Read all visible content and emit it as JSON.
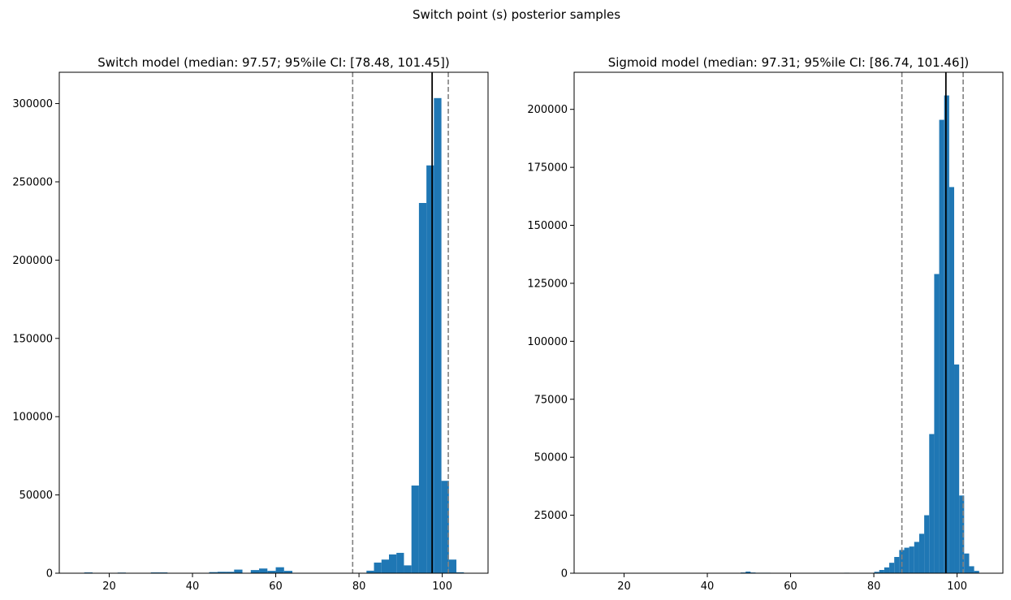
{
  "suptitle": "Switch point (s) posterior samples",
  "colors": {
    "bar": "#1f77b4",
    "median_line": "#000000",
    "ci_line": "#808080"
  },
  "chart_data": [
    {
      "type": "bar",
      "title": "Switch model (median: 97.57; 95%ile CI: [78.48, 101.45])",
      "xlabel": "",
      "ylabel": "",
      "xlim": [
        8,
        111
      ],
      "ylim": [
        0,
        320000
      ],
      "xticks": [
        20,
        40,
        60,
        80,
        100
      ],
      "yticks": [
        0,
        50000,
        100000,
        150000,
        200000,
        250000,
        300000
      ],
      "grid": false,
      "median": 97.57,
      "ci": [
        78.48,
        101.45
      ],
      "bins": [
        {
          "x0": 14.0,
          "x1": 16.0,
          "value": 500
        },
        {
          "x0": 22.0,
          "x1": 24.0,
          "value": 400
        },
        {
          "x0": 30.0,
          "x1": 32.0,
          "value": 500
        },
        {
          "x0": 32.0,
          "x1": 34.0,
          "value": 500
        },
        {
          "x0": 44.0,
          "x1": 46.0,
          "value": 700
        },
        {
          "x0": 46.0,
          "x1": 48.0,
          "value": 900
        },
        {
          "x0": 48.0,
          "x1": 50.0,
          "value": 900
        },
        {
          "x0": 50.0,
          "x1": 52.0,
          "value": 2300
        },
        {
          "x0": 54.0,
          "x1": 56.0,
          "value": 2000
        },
        {
          "x0": 56.0,
          "x1": 58.0,
          "value": 3000
        },
        {
          "x0": 58.0,
          "x1": 60.0,
          "value": 1500
        },
        {
          "x0": 60.0,
          "x1": 62.0,
          "value": 3800
        },
        {
          "x0": 62.0,
          "x1": 64.0,
          "value": 1500
        },
        {
          "x0": 81.8,
          "x1": 83.6,
          "value": 1600
        },
        {
          "x0": 83.6,
          "x1": 85.4,
          "value": 6800
        },
        {
          "x0": 85.4,
          "x1": 87.2,
          "value": 8700
        },
        {
          "x0": 87.2,
          "x1": 89.0,
          "value": 12000
        },
        {
          "x0": 89.0,
          "x1": 90.8,
          "value": 13000
        },
        {
          "x0": 90.8,
          "x1": 92.6,
          "value": 5000
        },
        {
          "x0": 92.6,
          "x1": 94.4,
          "value": 56000
        },
        {
          "x0": 94.4,
          "x1": 96.2,
          "value": 236500
        },
        {
          "x0": 96.2,
          "x1": 98.0,
          "value": 260500
        },
        {
          "x0": 98.0,
          "x1": 99.8,
          "value": 303500
        },
        {
          "x0": 99.8,
          "x1": 101.6,
          "value": 59000
        },
        {
          "x0": 101.6,
          "x1": 103.4,
          "value": 8700
        },
        {
          "x0": 103.4,
          "x1": 105.2,
          "value": 600
        }
      ]
    },
    {
      "type": "bar",
      "title": "Sigmoid model (median: 97.31; 95%ile CI: [86.74, 101.46])",
      "xlabel": "",
      "ylabel": "",
      "xlim": [
        8,
        111
      ],
      "ylim": [
        0,
        216000
      ],
      "xticks": [
        20,
        40,
        60,
        80,
        100
      ],
      "yticks": [
        0,
        25000,
        50000,
        75000,
        100000,
        125000,
        150000,
        175000,
        200000
      ],
      "grid": false,
      "median": 97.31,
      "ci": [
        86.74,
        101.46
      ],
      "bins": [
        {
          "x0": 48.0,
          "x1": 49.2,
          "value": 300
        },
        {
          "x0": 49.2,
          "x1": 50.4,
          "value": 700
        },
        {
          "x0": 50.4,
          "x1": 51.6,
          "value": 300
        },
        {
          "x0": 51.6,
          "x1": 52.8,
          "value": 200
        },
        {
          "x0": 52.8,
          "x1": 54.0,
          "value": 200
        },
        {
          "x0": 54.0,
          "x1": 55.2,
          "value": 200
        },
        {
          "x0": 72.9,
          "x1": 74.1,
          "value": 200
        },
        {
          "x0": 80.1,
          "x1": 81.3,
          "value": 600
        },
        {
          "x0": 81.3,
          "x1": 82.5,
          "value": 1400
        },
        {
          "x0": 82.5,
          "x1": 83.7,
          "value": 2500
        },
        {
          "x0": 83.7,
          "x1": 84.9,
          "value": 4500
        },
        {
          "x0": 84.9,
          "x1": 86.1,
          "value": 7000
        },
        {
          "x0": 86.1,
          "x1": 87.3,
          "value": 10000
        },
        {
          "x0": 87.3,
          "x1": 88.5,
          "value": 11000
        },
        {
          "x0": 88.5,
          "x1": 89.7,
          "value": 11500
        },
        {
          "x0": 89.7,
          "x1": 90.9,
          "value": 13500
        },
        {
          "x0": 90.9,
          "x1": 92.1,
          "value": 17000
        },
        {
          "x0": 92.1,
          "x1": 93.3,
          "value": 25000
        },
        {
          "x0": 93.3,
          "x1": 94.5,
          "value": 60000
        },
        {
          "x0": 94.5,
          "x1": 95.7,
          "value": 129000
        },
        {
          "x0": 95.7,
          "x1": 96.9,
          "value": 195500
        },
        {
          "x0": 96.9,
          "x1": 98.1,
          "value": 206000
        },
        {
          "x0": 98.1,
          "x1": 99.3,
          "value": 166500
        },
        {
          "x0": 99.3,
          "x1": 100.5,
          "value": 90000
        },
        {
          "x0": 100.5,
          "x1": 101.7,
          "value": 33500
        },
        {
          "x0": 101.7,
          "x1": 102.9,
          "value": 8500
        },
        {
          "x0": 102.9,
          "x1": 104.1,
          "value": 3000
        },
        {
          "x0": 104.1,
          "x1": 105.3,
          "value": 1000
        }
      ]
    }
  ]
}
